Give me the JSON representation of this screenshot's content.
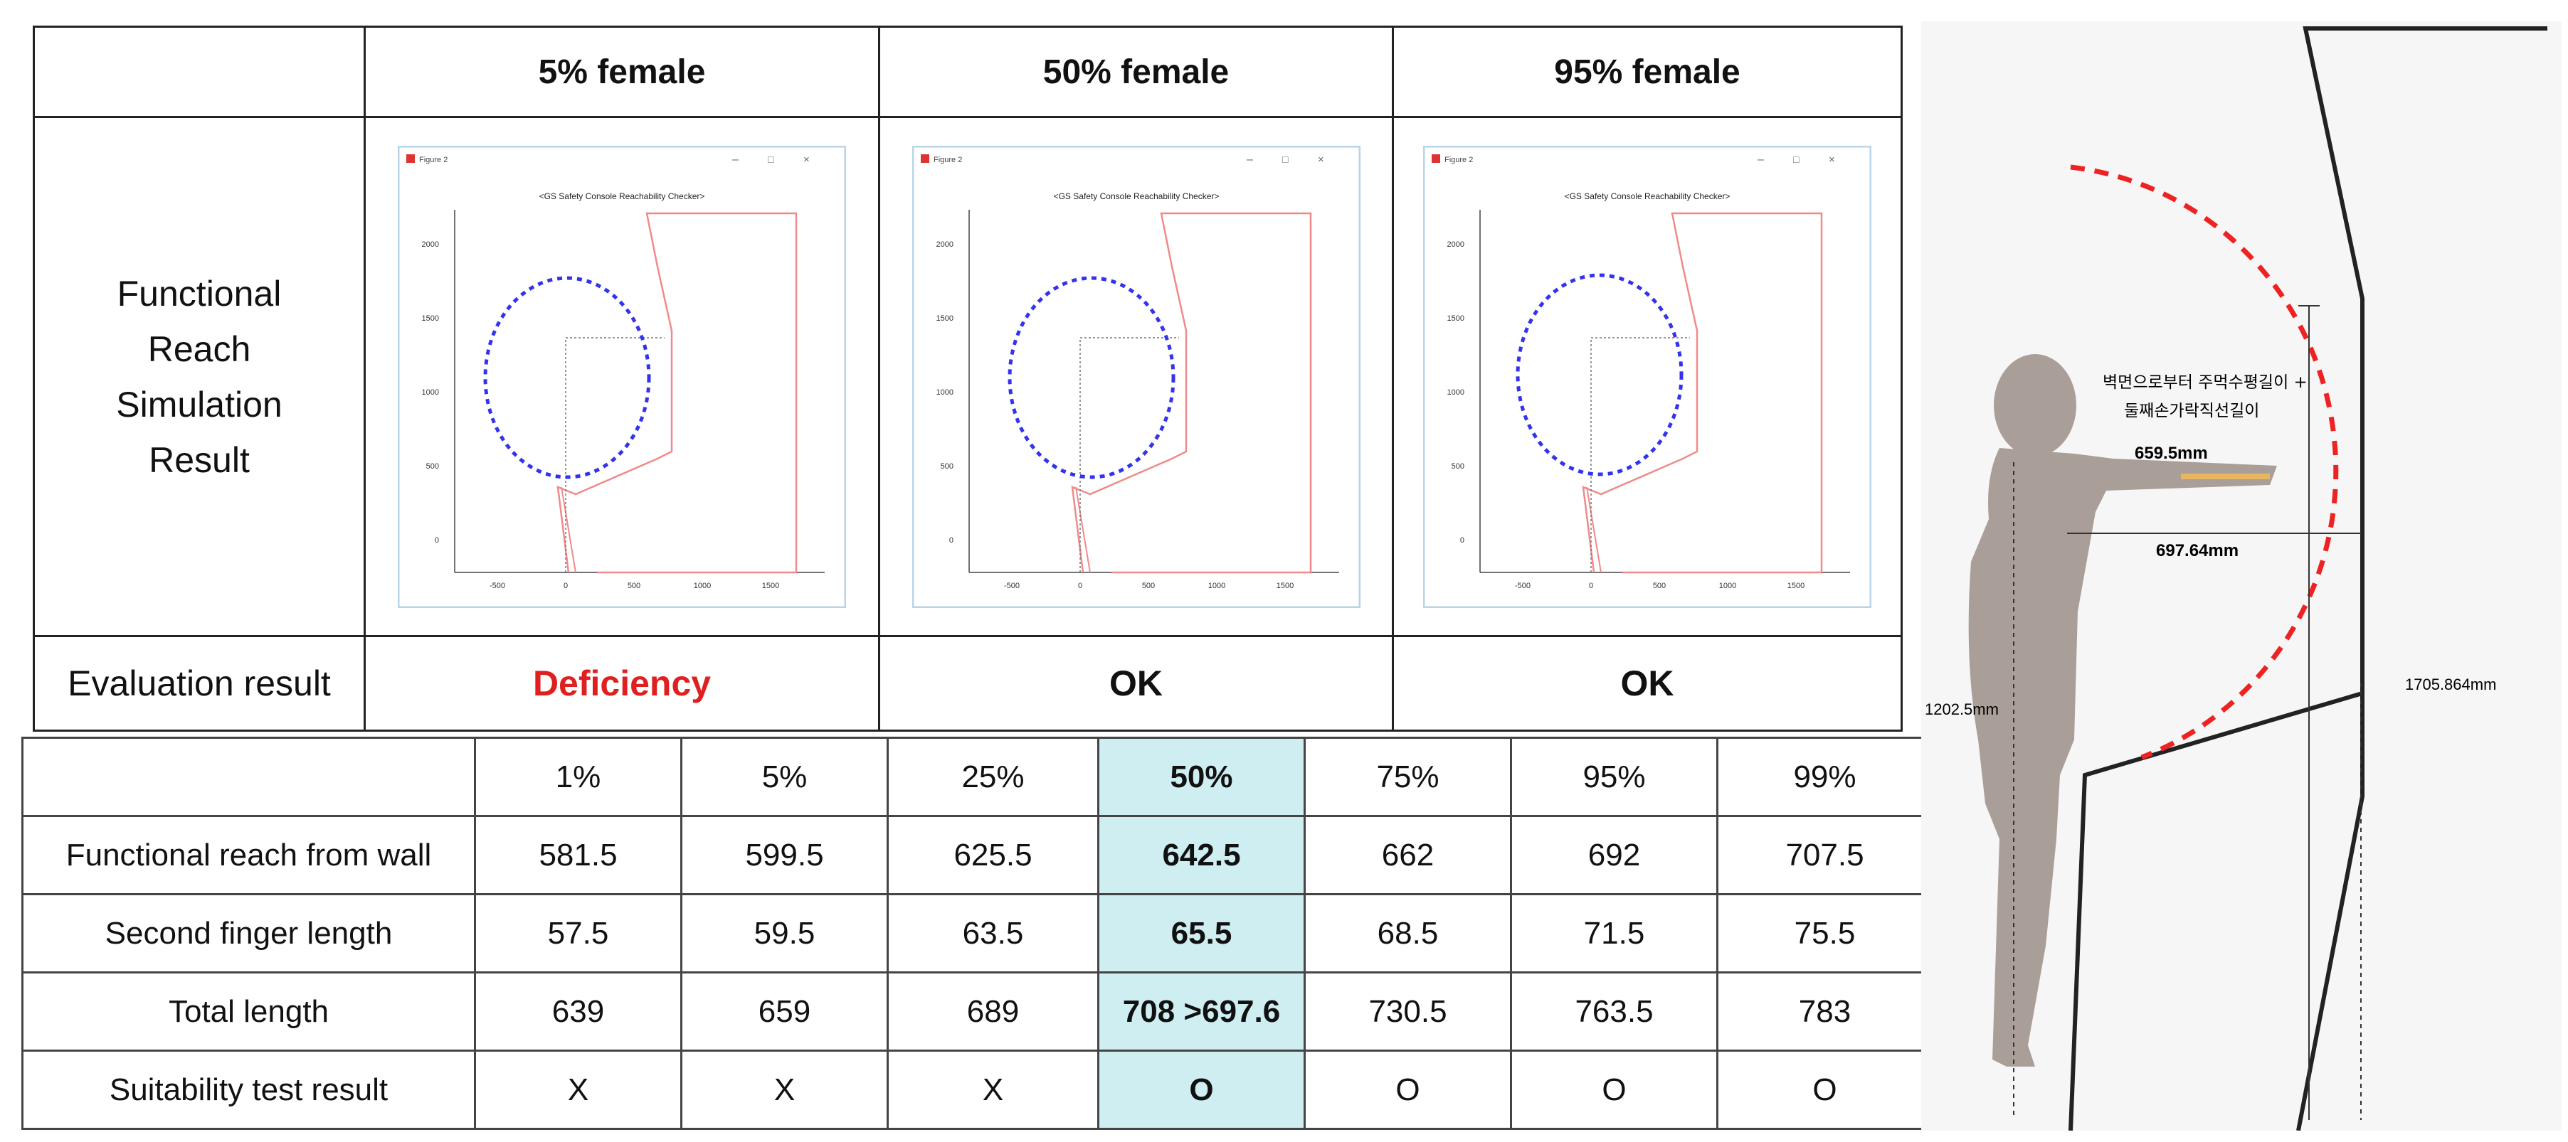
{
  "top_table": {
    "columns": [
      "5% female",
      "50% female",
      "95% female"
    ],
    "row_label": "Functional Reach Simulation Result",
    "eval_label": "Evaluation result",
    "eval_values": [
      "Deficiency",
      "OK",
      "OK"
    ],
    "colors": {
      "deficiency": "#e0201f",
      "ok": "#111111",
      "circle": "#3333ee",
      "console": "#f08a8a"
    }
  },
  "figure_window": {
    "title": "Figure 2",
    "chart_title": "<GS Safety Console Reachability Checker>",
    "y_ticks": [
      "2000",
      "1500",
      "1000",
      "500",
      "0"
    ],
    "x_ticks": [
      "-500",
      "0",
      "500",
      "1000",
      "1500"
    ]
  },
  "reach_table": {
    "percentiles": [
      "1%",
      "5%",
      "25%",
      "50%",
      "75%",
      "95%",
      "99%"
    ],
    "rows": [
      {
        "label": "Functional reach from wall",
        "values": [
          "581.5",
          "599.5",
          "625.5",
          "642.5",
          "662",
          "692",
          "707.5"
        ]
      },
      {
        "label": "Second finger length",
        "values": [
          "57.5",
          "59.5",
          "63.5",
          "65.5",
          "68.5",
          "71.5",
          "75.5"
        ]
      },
      {
        "label": "Total length",
        "values": [
          "639",
          "659",
          "689",
          "708 >697.6",
          "730.5",
          "763.5",
          "783"
        ]
      },
      {
        "label": "Suitability test result",
        "values": [
          "X",
          "X",
          "X",
          "O",
          "O",
          "O",
          "O"
        ]
      }
    ],
    "highlight_color": "#cfeef2"
  },
  "side_diagram": {
    "caption_line1": "벽면으로부터 주먹수평길이 +",
    "caption_line2": "둘째손가락직선길이",
    "dim_reach": "659.5mm",
    "dim_console": "697.64mm",
    "dim_height_left": "1202.5mm",
    "dim_height_right": "1705.864mm"
  }
}
